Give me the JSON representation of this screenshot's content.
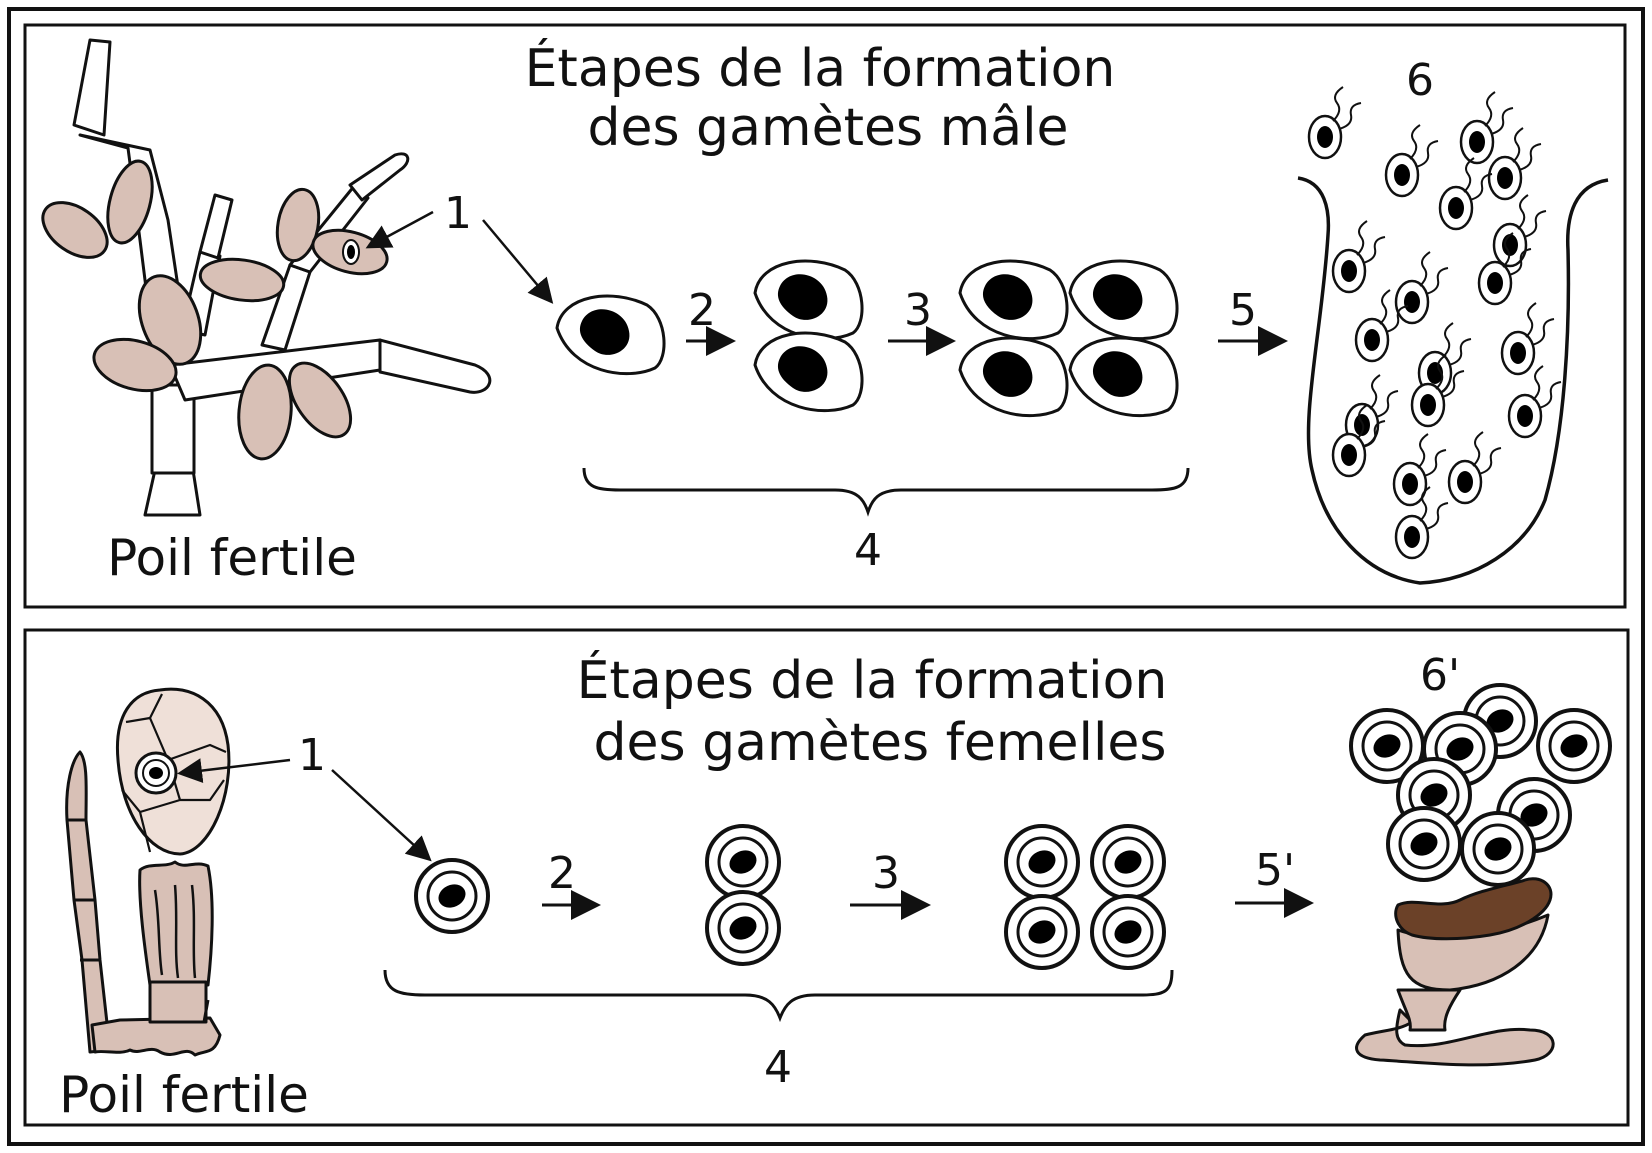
{
  "male": {
    "title_line1": "Étapes de la formation",
    "title_line2": "des gamètes mâle",
    "caption": "Poil fertile",
    "labels": {
      "l1": "1",
      "l2": "2",
      "l3": "3",
      "l4": "4",
      "l5": "5",
      "l6": "6"
    }
  },
  "female": {
    "title_line1": "Étapes de la formation",
    "title_line2": "des gamètes femelles",
    "caption": "Poil fertile",
    "labels": {
      "l1": "1",
      "l2": "2",
      "l3": "3",
      "l4": "4",
      "l5": "5'",
      "l6": "6'"
    }
  },
  "colors": {
    "structure_fill": "#d8c0b6",
    "spore_fill": "#ffffff",
    "nucleus": "#000000",
    "cup_rim": "#6b4128",
    "outline": "#111111"
  }
}
